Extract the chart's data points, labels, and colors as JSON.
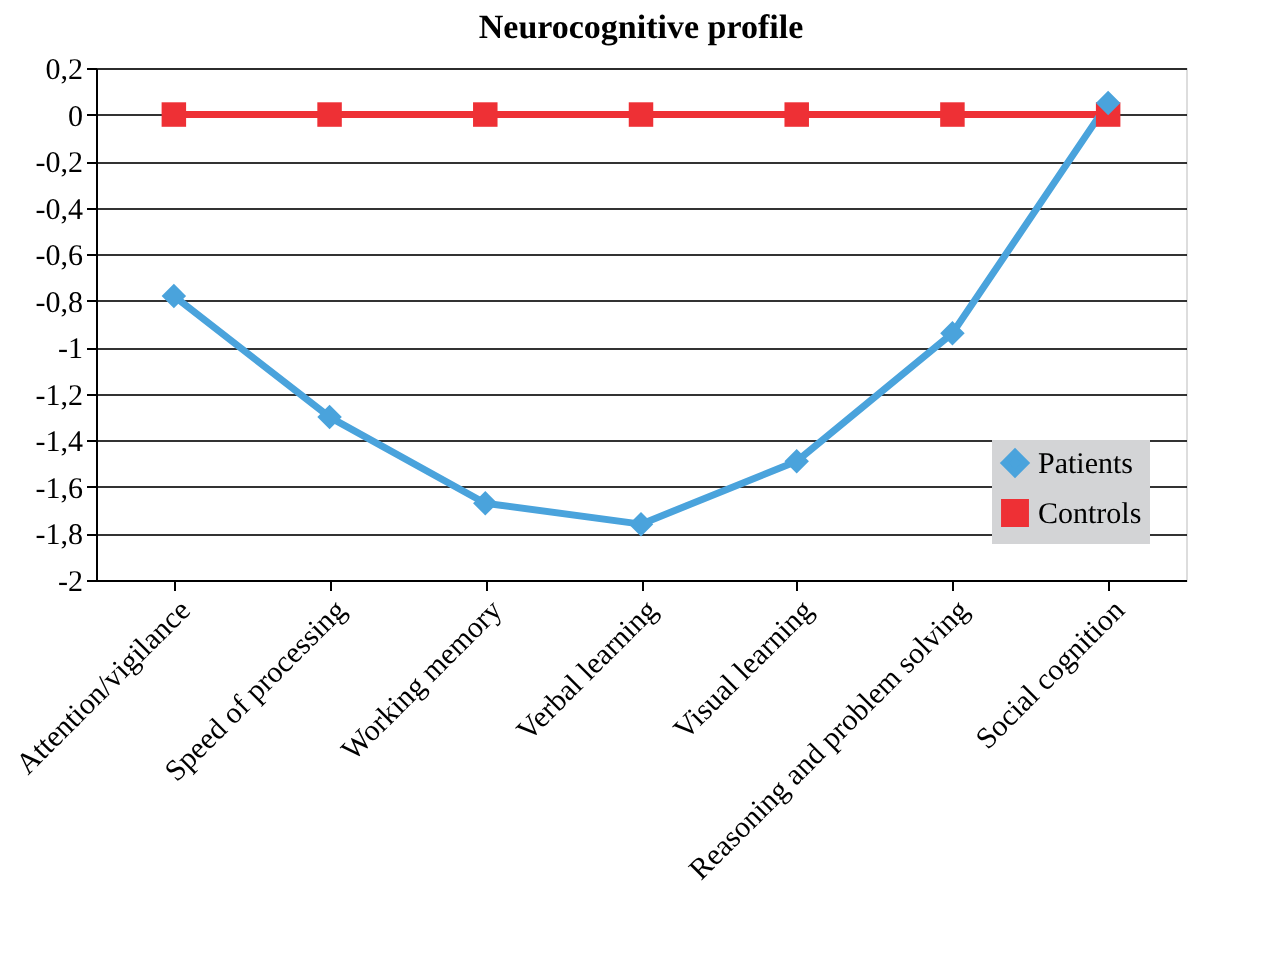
{
  "chart_data": {
    "type": "line",
    "title": "Neurocognitive profile",
    "categories": [
      "Attention/vigilance",
      "Speed of processing",
      "Working memory",
      "Verbal learning",
      "Visual learning",
      "Reasoning and problem solving",
      "Social cognition"
    ],
    "series": [
      {
        "name": "Patients",
        "color": "#4aa3dc",
        "marker": "diamond",
        "values": [
          -0.78,
          -1.3,
          -1.67,
          -1.76,
          -1.49,
          -0.94,
          0.05
        ]
      },
      {
        "name": "Controls",
        "color": "#ee3035",
        "marker": "square",
        "values": [
          0,
          0,
          0,
          0,
          0,
          0,
          0
        ]
      }
    ],
    "ylim": [
      -2,
      0.2
    ],
    "yticks": [
      {
        "value": 0.2,
        "label": "0,2"
      },
      0,
      {
        "value": -0.2,
        "label": "-0,2"
      },
      {
        "value": -0.4,
        "label": "-0,4"
      },
      {
        "value": -0.6,
        "label": "-0,6"
      },
      {
        "value": -0.8,
        "label": "-0,8"
      },
      -1,
      {
        "value": -1.2,
        "label": "-1,2"
      },
      {
        "value": -1.4,
        "label": "-1,4"
      },
      {
        "value": -1.6,
        "label": "-1,6"
      },
      {
        "value": -1.8,
        "label": "-1,8"
      },
      -2
    ],
    "grid": "y",
    "legend": "bottom right",
    "line_style": "solid"
  }
}
